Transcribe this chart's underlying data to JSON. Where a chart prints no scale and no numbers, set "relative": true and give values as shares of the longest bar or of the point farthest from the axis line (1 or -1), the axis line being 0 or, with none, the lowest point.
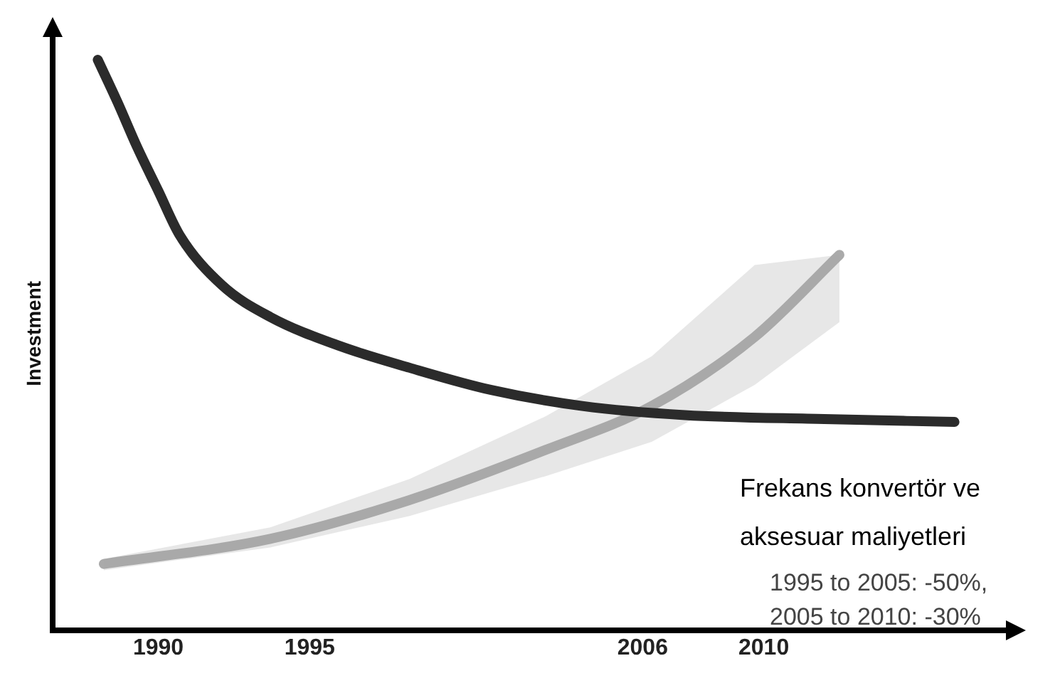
{
  "chart_data": {
    "type": "line",
    "relative": true,
    "ylabel": "Investment",
    "xlim": [
      1986.5,
      2018
    ],
    "xticks": [
      1990,
      1995,
      2006,
      2010
    ],
    "grid": false,
    "legend": false,
    "marker": "none",
    "line_style": "solid",
    "annotations": [
      "Frekans konvertör ve aksesuar maliyetleri",
      "1995 to 2005: -50%,\n2005 to 2010: -30%"
    ],
    "series": [
      {
        "color": "#2b2b2b",
        "x": [
          1988.0,
          1988.65,
          1989.3,
          1990.0,
          1990.7,
          1992.1,
          1993.7,
          1996.0,
          1998.3,
          2001.0,
          2004.0,
          2007.4,
          2012.0,
          2016.3
        ],
        "values": [
          1.0,
          0.926,
          0.847,
          0.77,
          0.693,
          0.605,
          0.549,
          0.498,
          0.46,
          0.421,
          0.393,
          0.377,
          0.37,
          0.365
        ]
      },
      {
        "color": "#aaaaaa",
        "x": [
          1988.2,
          1993.7,
          1998.3,
          2002.8,
          2006.3,
          2009.7,
          2012.5
        ],
        "values": [
          0.116,
          0.16,
          0.228,
          0.316,
          0.393,
          0.514,
          0.658
        ],
        "lower": [
          0.105,
          0.145,
          0.2,
          0.27,
          0.33,
          0.43,
          0.54
        ],
        "upper": [
          0.125,
          0.18,
          0.265,
          0.375,
          0.48,
          0.64,
          0.658
        ]
      }
    ]
  }
}
